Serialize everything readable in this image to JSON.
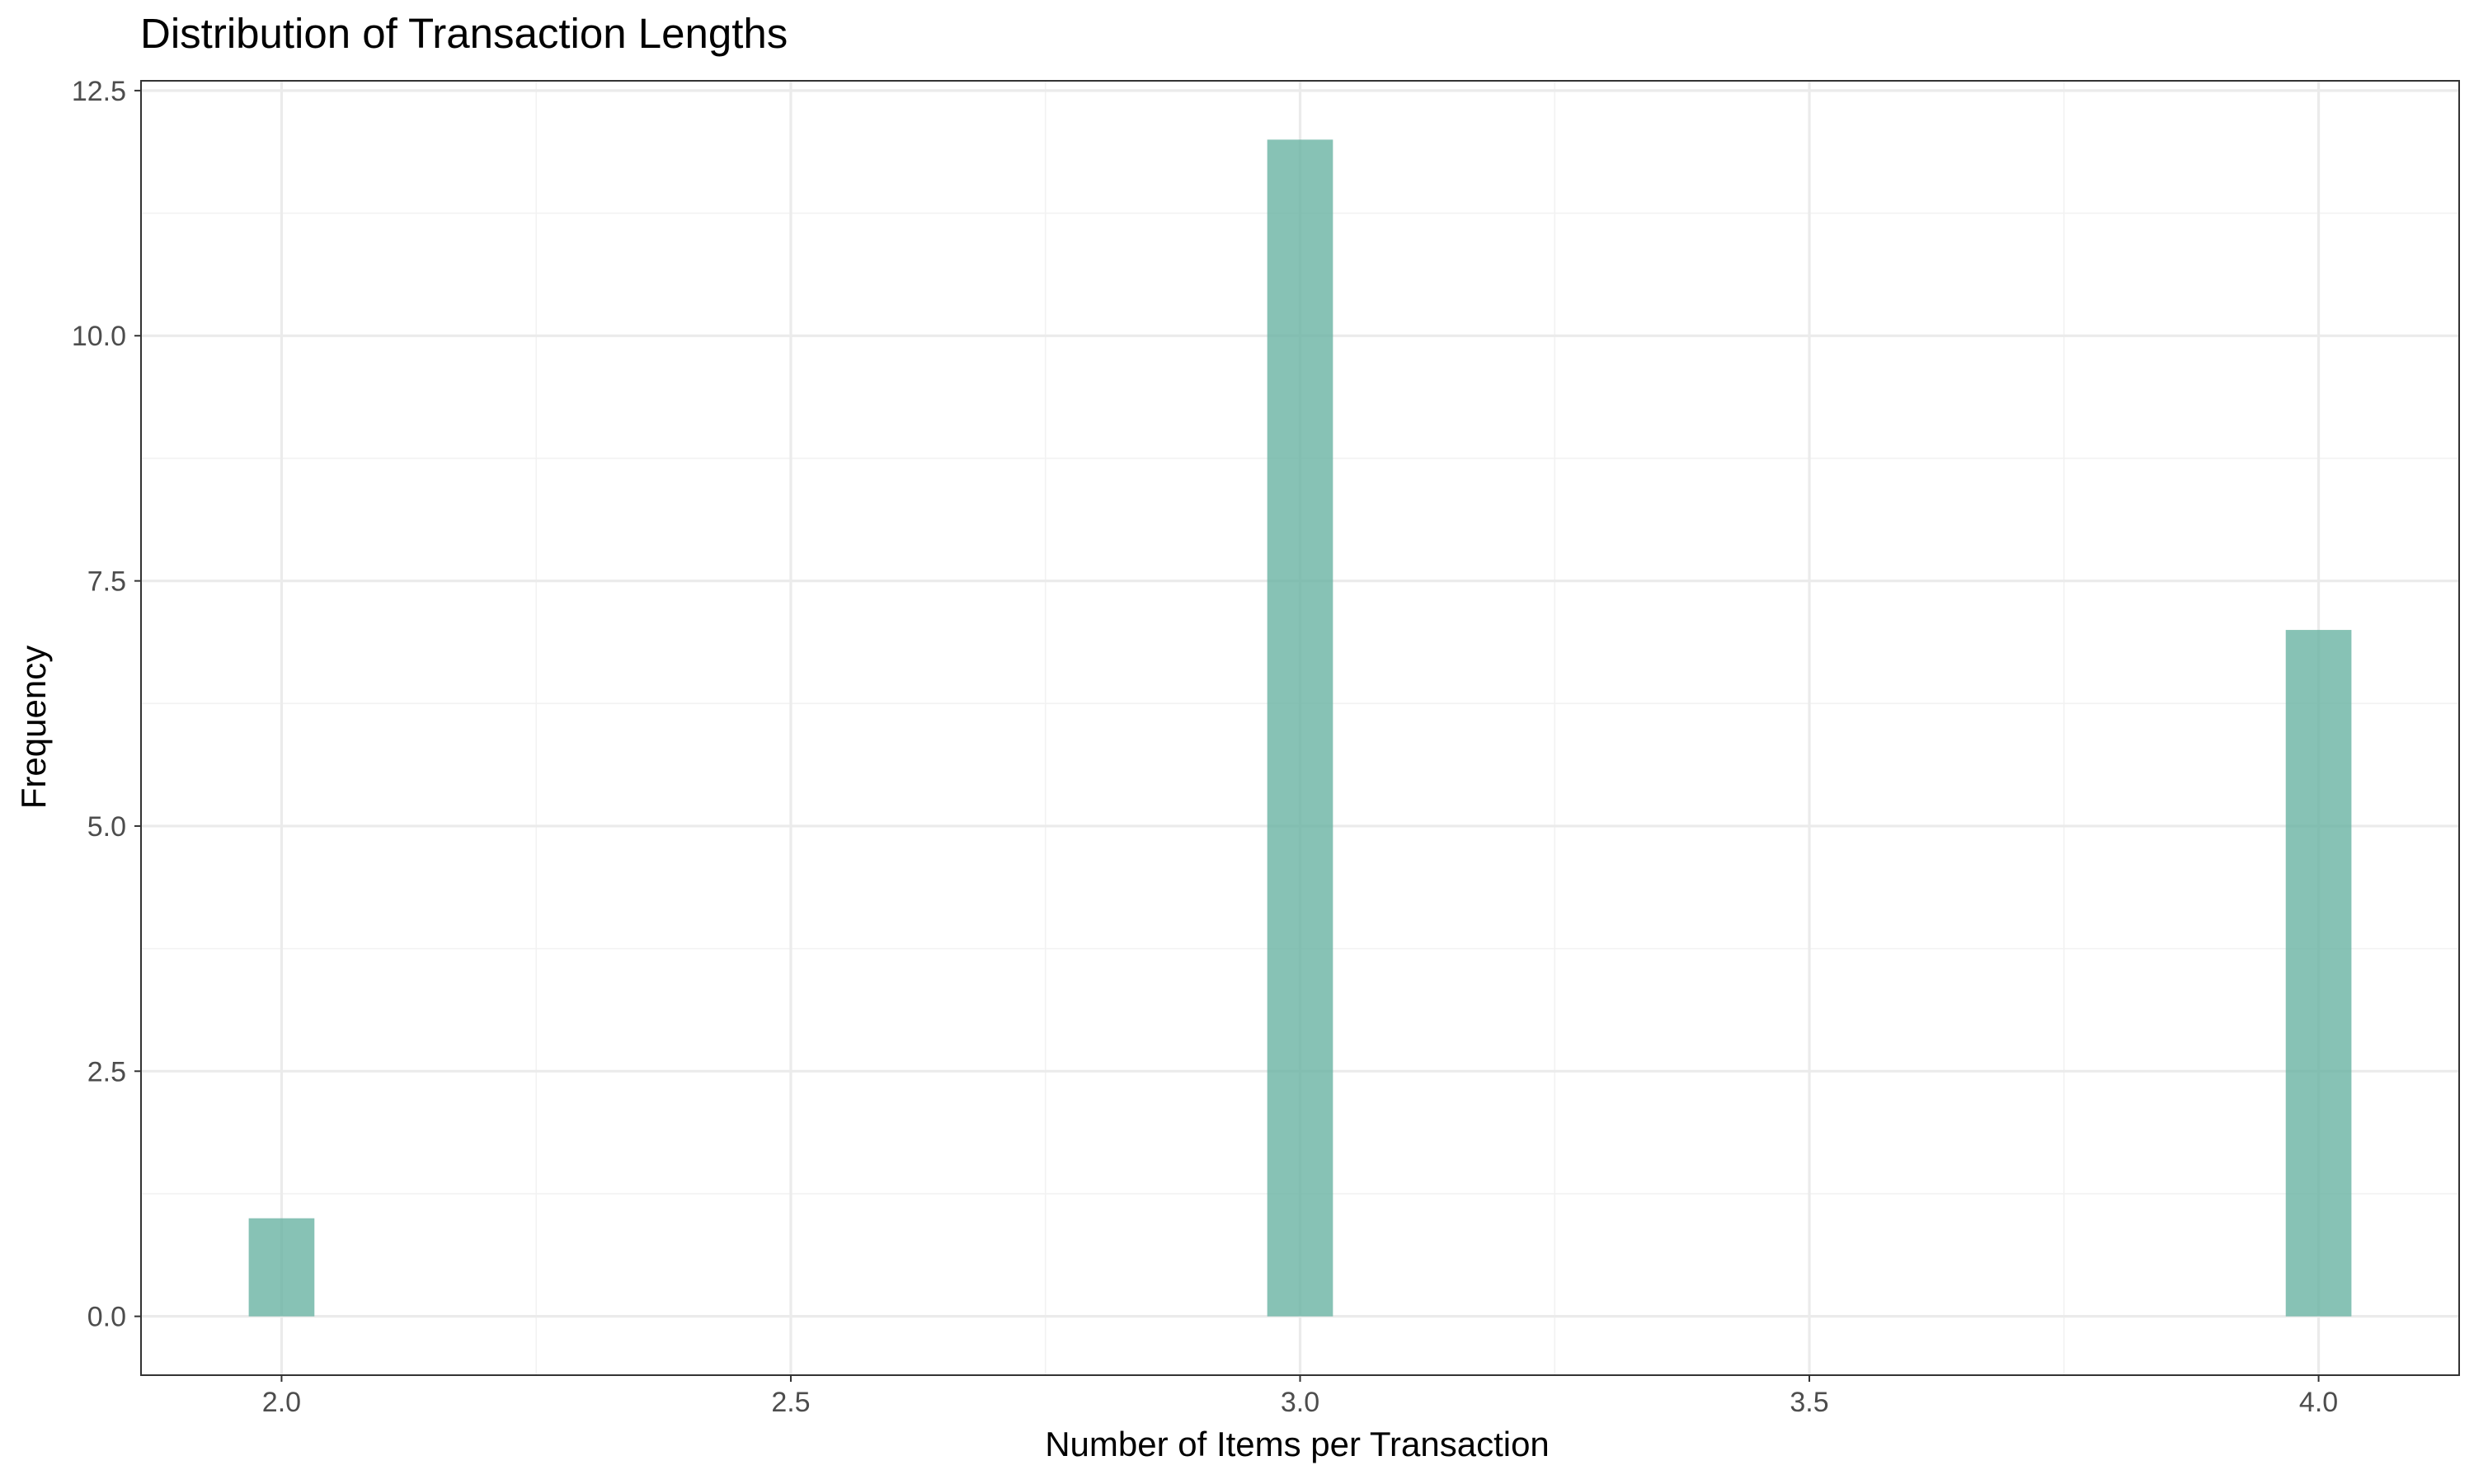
{
  "chart_data": {
    "type": "bar",
    "title": "Distribution of Transaction Lengths",
    "xlabel": "Number of Items per Transaction",
    "ylabel": "Frequency",
    "x": [
      2.0,
      3.0,
      4.0
    ],
    "values": [
      1,
      12,
      7
    ],
    "bin_width": 0.0645,
    "xlim": [
      1.862,
      4.138
    ],
    "ylim": [
      -0.6,
      12.6
    ],
    "x_ticks": [
      2.0,
      2.5,
      3.0,
      3.5,
      4.0
    ],
    "x_tick_labels": [
      "2.0",
      "2.5",
      "3.0",
      "3.5",
      "4.0"
    ],
    "y_ticks": [
      0,
      2.5,
      5,
      7.5,
      10,
      12.5
    ],
    "y_tick_labels": [
      "0.0",
      "2.5",
      "5.0",
      "7.5",
      "10.0",
      "12.5"
    ],
    "grid": true,
    "bar_color": "#69b3a2"
  }
}
